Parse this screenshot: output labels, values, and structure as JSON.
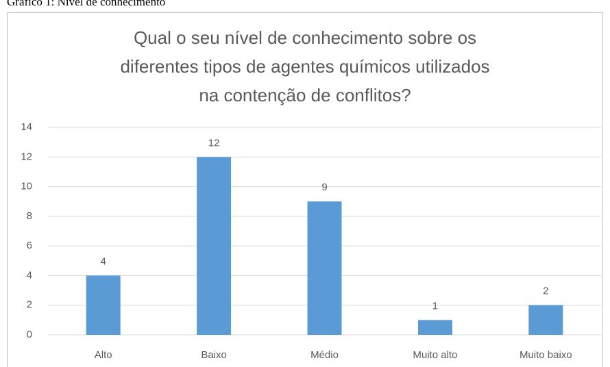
{
  "caption": "Gráfico 1: Nível de conhecimento",
  "chart_data": {
    "type": "bar",
    "title": [
      "Qual o seu nível de conhecimento sobre os",
      "diferentes tipos de agentes químicos utilizados",
      "na contenção de conflitos?"
    ],
    "categories": [
      "Alto",
      "Baixo",
      "Médio",
      "Muito alto",
      "Muito baixo"
    ],
    "values": [
      4,
      12,
      9,
      1,
      2
    ],
    "color": "#5b9bd5",
    "ylim": [
      0,
      14
    ],
    "yticks": [
      0,
      2,
      4,
      6,
      8,
      10,
      12,
      14
    ],
    "grid": true
  }
}
